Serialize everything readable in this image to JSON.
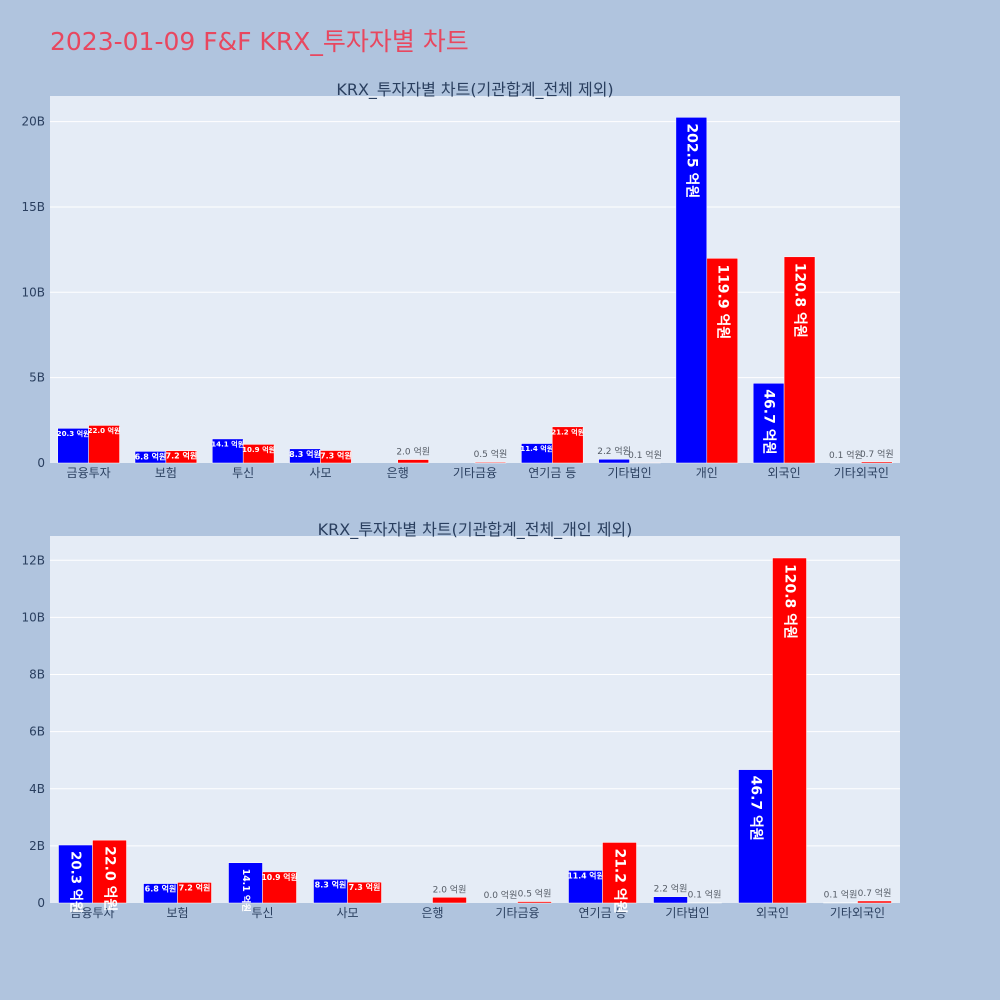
{
  "page_title": "2023-01-09 F&F KRX_투자자별 차트",
  "colors": {
    "buy": "#0000ff",
    "sell": "#ff0000",
    "plot_bg": "#e5ecf6",
    "page_bg": "#b0c4de",
    "title": "#e8475f"
  },
  "chart_data": [
    {
      "type": "bar",
      "title": "KRX_투자자별 차트(기관합계_전체 제외)",
      "categories": [
        "금융투자",
        "보험",
        "투신",
        "사모",
        "은행",
        "기타금융",
        "연기금 등",
        "기타법인",
        "개인",
        "외국인",
        "기타외국인"
      ],
      "series": [
        {
          "color": "#0000ff",
          "values": [
            2.03,
            0.68,
            1.41,
            0.83,
            0.0,
            0.0,
            1.14,
            0.22,
            20.25,
            4.67,
            0.01
          ],
          "labels": [
            "20.3 억원",
            "6.8 억원",
            "14.1 억원",
            "8.3 억원",
            "",
            "",
            "11.4 억원",
            "2.2 억원",
            "202.5 억원",
            "46.7 억원",
            "0.1 억원"
          ]
        },
        {
          "color": "#ff0000",
          "values": [
            2.2,
            0.72,
            1.09,
            0.73,
            0.2,
            0.05,
            2.12,
            0.01,
            11.99,
            12.08,
            0.07
          ],
          "labels": [
            "22.0 억원",
            "7.2 억원",
            "10.9 억원",
            "7.3 억원",
            "2.0 억원",
            "0.5 억원",
            "21.2 억원",
            "0.1 억원",
            "119.9 억원",
            "120.8 억원",
            "0.7 억원"
          ]
        }
      ],
      "ylim": [
        0,
        21.5
      ],
      "yticks": [
        0,
        5,
        10,
        15,
        20
      ],
      "ytick_labels": [
        "0",
        "5B",
        "10B",
        "15B",
        "20B"
      ],
      "grid": true
    },
    {
      "type": "bar",
      "title": "KRX_투자자별 차트(기관합계_전체_개인 제외)",
      "categories": [
        "금융투자",
        "보험",
        "투신",
        "사모",
        "은행",
        "기타금융",
        "연기금 등",
        "기타법인",
        "외국인",
        "기타외국인"
      ],
      "series": [
        {
          "color": "#0000ff",
          "values": [
            2.03,
            0.68,
            1.41,
            0.83,
            0.0,
            0.0,
            1.14,
            0.22,
            4.67,
            0.01
          ],
          "labels": [
            "20.3 억원",
            "6.8 억원",
            "14.1 억원",
            "8.3 억원",
            "",
            "0.0 억원",
            "11.4 억원",
            "2.2 억원",
            "46.7 억원",
            "0.1 억원"
          ]
        },
        {
          "color": "#ff0000",
          "values": [
            2.2,
            0.72,
            1.09,
            0.73,
            0.2,
            0.05,
            2.12,
            0.01,
            12.08,
            0.07
          ],
          "labels": [
            "22.0 억원",
            "7.2 억원",
            "10.9 억원",
            "7.3 억원",
            "2.0 억원",
            "0.5 억원",
            "21.2 억원",
            "0.1 억원",
            "120.8 억원",
            "0.7 억원"
          ]
        }
      ],
      "ylim": [
        0,
        12.85
      ],
      "yticks": [
        0,
        2,
        4,
        6,
        8,
        10,
        12
      ],
      "ytick_labels": [
        "0",
        "2B",
        "4B",
        "6B",
        "8B",
        "10B",
        "12B"
      ],
      "grid": true
    }
  ]
}
